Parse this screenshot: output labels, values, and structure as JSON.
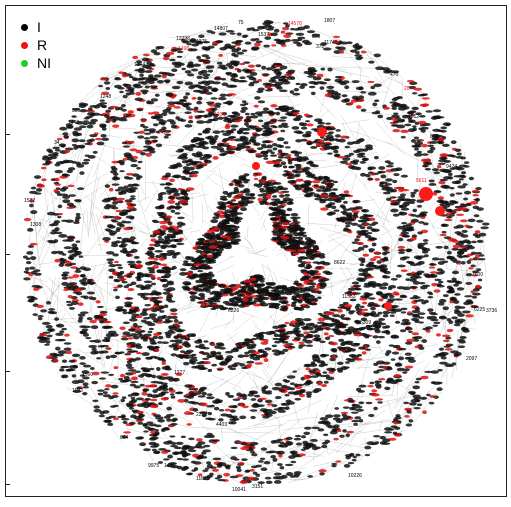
{
  "legend": [
    {
      "label": "I",
      "color": "#000000"
    },
    {
      "label": "R",
      "color": "#ee1111"
    },
    {
      "label": "NI",
      "color": "#22cc22"
    }
  ],
  "node_labels": {
    "black": [
      "75",
      "1537",
      "13298",
      "1275",
      "14807",
      "278",
      "372",
      "11745",
      "470",
      "1344",
      "34",
      "1448",
      "1522",
      "1807",
      "7600",
      "2097",
      "3736",
      "6225",
      "9975",
      "1486",
      "11825",
      "10041",
      "3151",
      "10226",
      "874",
      "1193",
      "1560",
      "801",
      "9424",
      "11563",
      "7300",
      "6226",
      "3258",
      "8622",
      "1277",
      "5309",
      "1248",
      "336",
      "1308",
      "2219",
      "4403",
      "1812"
    ],
    "red": [
      "14578",
      "1498",
      "1426",
      "1204",
      "2077",
      "5611"
    ]
  }
}
